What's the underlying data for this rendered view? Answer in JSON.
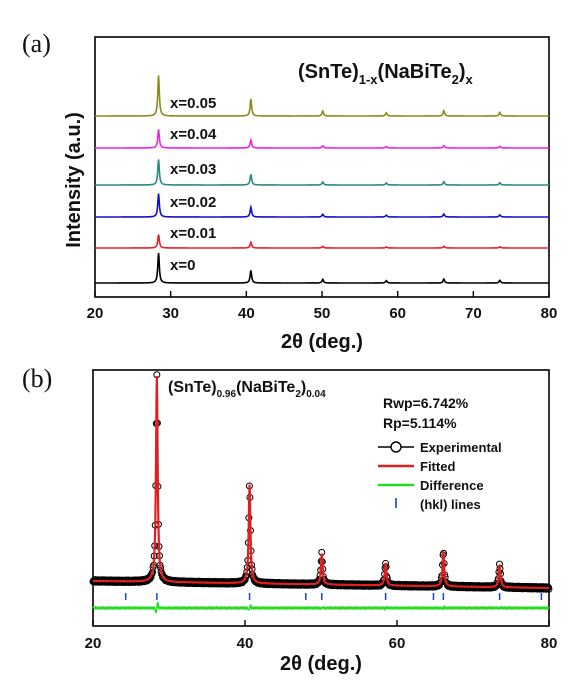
{
  "chart_data": [
    {
      "panel": "(a)",
      "type": "line",
      "title": "(SnTe)1-x(NaBiTe2)x",
      "title_parts": {
        "base1": "(SnTe)",
        "sub1": "1-x",
        "base2": "(NaBiTe",
        "sub2": "2",
        "base3": ")",
        "sub3": "x"
      },
      "xlabel": "2θ (deg.)",
      "ylabel": "Intensity (a.u.)",
      "xlim": [
        20,
        80
      ],
      "xticks": [
        20,
        30,
        40,
        50,
        60,
        70,
        80
      ],
      "peaks": [
        {
          "x": 28.4,
          "rel": 1.0
        },
        {
          "x": 40.6,
          "rel": 0.42
        },
        {
          "x": 50.1,
          "rel": 0.12
        },
        {
          "x": 58.5,
          "rel": 0.08
        },
        {
          "x": 66.1,
          "rel": 0.13
        },
        {
          "x": 73.5,
          "rel": 0.09
        }
      ],
      "series": [
        {
          "name": "x=0",
          "color": "#000000",
          "peak_scale": 1.0
        },
        {
          "name": "x=0.01",
          "color": "#e8202a",
          "peak_scale": 0.45
        },
        {
          "name": "x=0.02",
          "color": "#1010cc",
          "peak_scale": 0.78
        },
        {
          "name": "x=0.03",
          "color": "#2a8a80",
          "peak_scale": 0.85
        },
        {
          "name": "x=0.04",
          "color": "#ee22ee",
          "peak_scale": 0.62
        },
        {
          "name": "x=0.05",
          "color": "#8a8a1e",
          "peak_scale": 1.35
        }
      ]
    },
    {
      "panel": "(b)",
      "type": "line",
      "title": "(SnTe)0.96(NaBiTe2)0.04",
      "title_parts": {
        "base1": "(SnTe)",
        "sub1": "0.96",
        "base2": "(NaBiTe",
        "sub2": "2",
        "base3": ")",
        "sub3": "0.04"
      },
      "xlabel": "2θ (deg.)",
      "xlim": [
        20,
        80
      ],
      "xticks": [
        20,
        40,
        60,
        80
      ],
      "stats": {
        "rwp": "Rwp=6.742%",
        "rp": "Rp=5.114%"
      },
      "legend": [
        {
          "name": "Experimental",
          "color": "#000000",
          "marker": "circle"
        },
        {
          "name": "Fitted",
          "color": "#e02020",
          "marker": "line"
        },
        {
          "name": "Difference",
          "color": "#22dd22",
          "marker": "line"
        },
        {
          "name": "(hkl) lines",
          "color": "#2040cc",
          "marker": "tick"
        }
      ],
      "peaks": [
        {
          "x": 28.4,
          "rel": 1.0
        },
        {
          "x": 40.6,
          "rel": 0.48
        },
        {
          "x": 50.1,
          "rel": 0.15
        },
        {
          "x": 58.5,
          "rel": 0.11
        },
        {
          "x": 66.1,
          "rel": 0.17
        },
        {
          "x": 73.5,
          "rel": 0.11
        }
      ],
      "hkl_positions": [
        24.3,
        28.4,
        40.6,
        48.0,
        50.1,
        58.5,
        64.8,
        66.1,
        73.5,
        79.0
      ]
    }
  ]
}
